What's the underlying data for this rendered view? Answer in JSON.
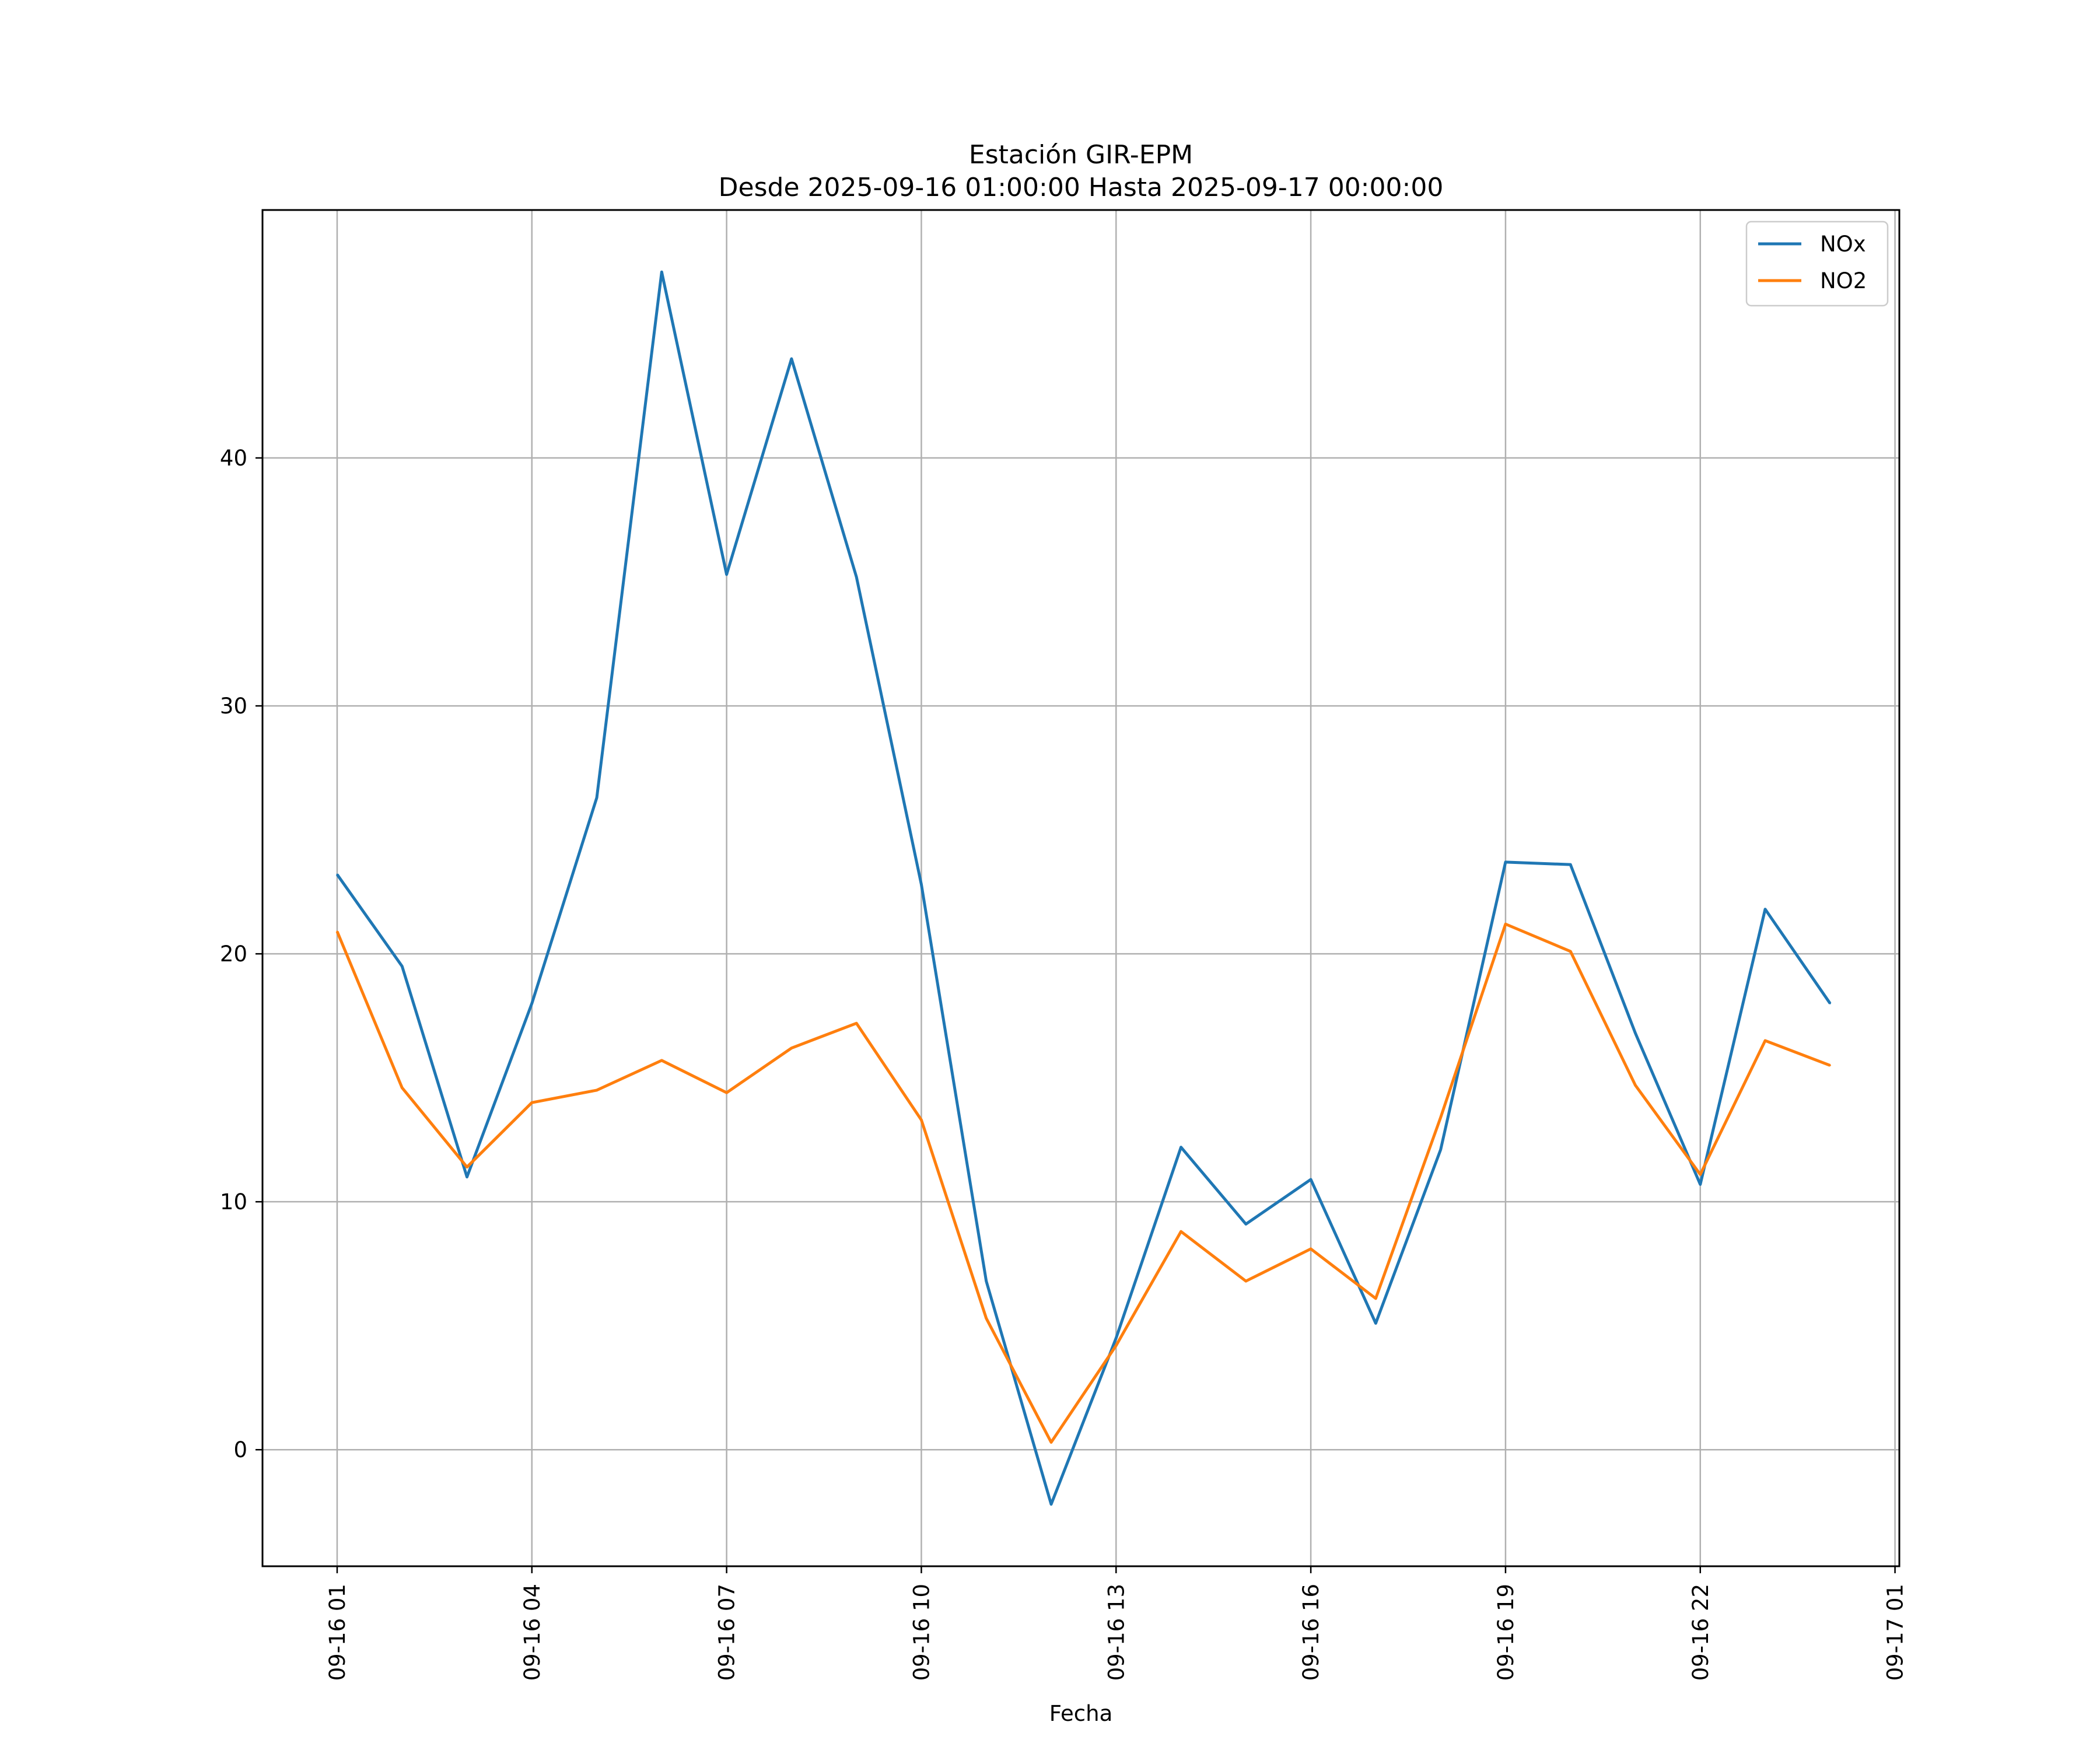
{
  "chart_data": {
    "type": "line",
    "title": "Estación GIR-EPM",
    "subtitle": "Desde 2025-09-16 01:00:00 Hasta 2025-09-17 00:00:00",
    "xlabel": "Fecha",
    "ylabel": "",
    "x": [
      "2025-09-16 01:00",
      "2025-09-16 02:00",
      "2025-09-16 03:00",
      "2025-09-16 04:00",
      "2025-09-16 05:00",
      "2025-09-16 06:00",
      "2025-09-16 07:00",
      "2025-09-16 08:00",
      "2025-09-16 09:00",
      "2025-09-16 10:00",
      "2025-09-16 11:00",
      "2025-09-16 12:00",
      "2025-09-16 13:00",
      "2025-09-16 14:00",
      "2025-09-16 15:00",
      "2025-09-16 16:00",
      "2025-09-16 17:00",
      "2025-09-16 18:00",
      "2025-09-16 19:00",
      "2025-09-16 20:00",
      "2025-09-16 21:00",
      "2025-09-16 22:00",
      "2025-09-16 23:00",
      "2025-09-17 00:00"
    ],
    "series": [
      {
        "name": "NOx",
        "color": "#1f77b4",
        "values": [
          23.2,
          19.5,
          11.0,
          18.0,
          26.3,
          47.5,
          35.3,
          44.0,
          35.2,
          22.8,
          6.8,
          -2.2,
          4.5,
          12.2,
          9.1,
          10.9,
          5.1,
          12.1,
          23.7,
          23.6,
          16.8,
          10.7,
          21.8,
          18.0
        ]
      },
      {
        "name": "NO2",
        "color": "#ff7f0e",
        "values": [
          20.9,
          14.6,
          11.4,
          14.0,
          14.5,
          15.7,
          14.4,
          16.2,
          17.2,
          13.3,
          5.3,
          0.3,
          4.2,
          8.8,
          6.8,
          8.1,
          6.1,
          13.4,
          21.2,
          20.1,
          14.7,
          11.1,
          16.5,
          15.5
        ]
      }
    ],
    "xticks": [
      "09-16 01",
      "09-16 04",
      "09-16 07",
      "09-16 10",
      "09-16 13",
      "09-16 16",
      "09-16 19",
      "09-16 22",
      "09-17 01"
    ],
    "xtick_values": [
      "2025-09-16 01:00",
      "2025-09-16 04:00",
      "2025-09-16 07:00",
      "2025-09-16 10:00",
      "2025-09-16 13:00",
      "2025-09-16 16:00",
      "2025-09-16 19:00",
      "2025-09-16 22:00",
      "2025-09-17 01:00"
    ],
    "yticks": [
      0,
      10,
      20,
      30,
      40
    ],
    "xlim": [
      "2025-09-15 23:51",
      "2025-09-17 01:04"
    ],
    "ylim": [
      -4.7,
      50.0
    ],
    "grid": true,
    "legend": "top-right"
  }
}
